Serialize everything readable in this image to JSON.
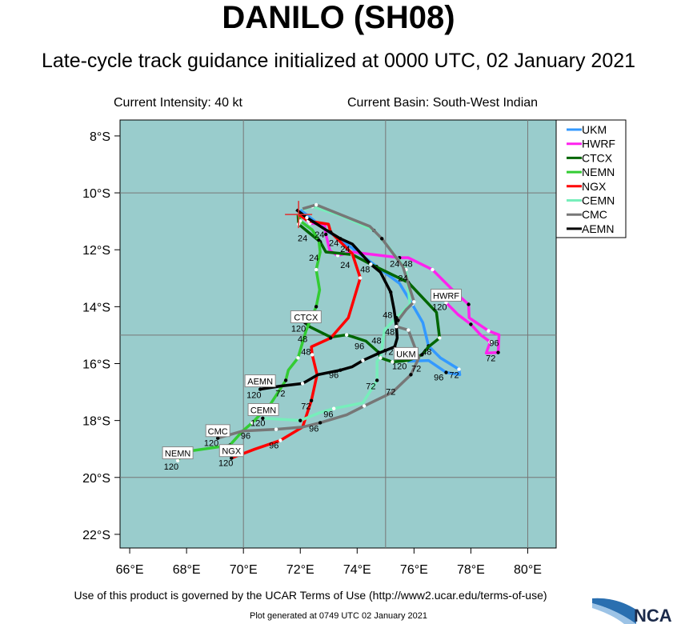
{
  "header": {
    "title": "DANILO (SH08)",
    "subtitle": "Late-cycle track guidance initialized at 0000 UTC, 02 January 2021",
    "current_intensity": "Current Intensity: 40 kt",
    "current_basin": "Current Basin: South-West Indian"
  },
  "footer": {
    "terms": "Use of this product is governed by the UCAR Terms of Use (http://www2.ucar.edu/terms-of-use)",
    "generated": "Plot generated at 0749 UTC   02 January 2021",
    "logo_text": "NCAR"
  },
  "map": {
    "background_color": "#99cccc",
    "lon_range": [
      65.66,
      81.0
    ],
    "lat_range": [
      -22.48,
      -7.44
    ],
    "grid_lons": [
      70,
      75,
      80
    ],
    "grid_lats": [
      -10,
      -15,
      -20
    ],
    "lon_ticks": [
      {
        "value": 66,
        "label": "66°E"
      },
      {
        "value": 68,
        "label": "68°E"
      },
      {
        "value": 70,
        "label": "70°E"
      },
      {
        "value": 72,
        "label": "72°E"
      },
      {
        "value": 74,
        "label": "74°E"
      },
      {
        "value": 76,
        "label": "76°E"
      },
      {
        "value": 78,
        "label": "78°E"
      },
      {
        "value": 80,
        "label": "80°E"
      }
    ],
    "lat_ticks": [
      {
        "value": -8,
        "label": "8°S"
      },
      {
        "value": -10,
        "label": "10°S"
      },
      {
        "value": -12,
        "label": "12°S"
      },
      {
        "value": -14,
        "label": "14°S"
      },
      {
        "value": -16,
        "label": "16°S"
      },
      {
        "value": -18,
        "label": "18°S"
      },
      {
        "value": -20,
        "label": "20°S"
      },
      {
        "value": -22,
        "label": "22°S"
      }
    ],
    "current_position": {
      "lon": 71.94,
      "lat": -10.76,
      "marker": "red-cross"
    }
  },
  "legend": {
    "placement": "right",
    "entries": [
      {
        "name": "UKM",
        "color": "#3399ff"
      },
      {
        "name": "HWRF",
        "color": "#ff22ee"
      },
      {
        "name": "CTCX",
        "color": "#006600"
      },
      {
        "name": "NEMN",
        "color": "#33cc33"
      },
      {
        "name": "NGX",
        "color": "#ff0000"
      },
      {
        "name": "CEMN",
        "color": "#77eebb"
      },
      {
        "name": "CMC",
        "color": "#777777"
      },
      {
        "name": "AEMN",
        "color": "#000000"
      }
    ]
  },
  "chart_data": {
    "type": "line",
    "xlabel": "",
    "ylabel": "",
    "xlim": [
      65.66,
      81.0
    ],
    "ylim": [
      -22.48,
      -7.44
    ],
    "grid": true,
    "series": [
      {
        "name": "UKM",
        "color": "#3399ff",
        "end_label": {
          "lon": 75.72,
          "lat": -15.66
        },
        "points": [
          [
            72.0,
            -10.6
          ],
          [
            72.9,
            -11.3
          ],
          [
            73.83,
            -11.94
          ],
          [
            74.68,
            -12.59
          ],
          [
            75.49,
            -13.18
          ],
          [
            75.94,
            -13.92
          ],
          [
            76.31,
            -14.56
          ],
          [
            76.51,
            -15.38
          ],
          [
            76.93,
            -15.8
          ],
          [
            77.58,
            -16.2
          ],
          [
            77.61,
            -16.39
          ],
          [
            77.13,
            -16.31
          ],
          [
            76.51,
            -15.89
          ],
          [
            75.72,
            -15.92
          ]
        ]
      },
      {
        "name": "HWRF",
        "color": "#ff22ee",
        "end_label": {
          "lon": 77.13,
          "lat": -13.61
        },
        "points": [
          [
            72.0,
            -10.76
          ],
          [
            72.34,
            -11.07
          ],
          [
            72.85,
            -11.1
          ],
          [
            72.9,
            -11.46
          ],
          [
            73.04,
            -12.03
          ],
          [
            73.32,
            -12.2
          ],
          [
            73.83,
            -12.08
          ],
          [
            75.49,
            -12.28
          ],
          [
            75.8,
            -12.28
          ],
          [
            76.65,
            -12.7
          ],
          [
            77.44,
            -13.49
          ],
          [
            77.92,
            -13.92
          ],
          [
            77.94,
            -14.39
          ],
          [
            78.62,
            -14.85
          ],
          [
            78.99,
            -14.99
          ],
          [
            78.96,
            -15.61
          ],
          [
            78.54,
            -15.63
          ],
          [
            78.68,
            -15.24
          ],
          [
            78.34,
            -14.99
          ],
          [
            78.0,
            -14.62
          ],
          [
            77.55,
            -14.28
          ],
          [
            77.13,
            -13.86
          ]
        ]
      },
      {
        "name": "CTCX",
        "color": "#006600",
        "end_label": {
          "lon": 72.2,
          "lat": -14.37
        },
        "points": [
          [
            71.92,
            -10.76
          ],
          [
            71.94,
            -11.1
          ],
          [
            72.28,
            -11.38
          ],
          [
            72.7,
            -11.72
          ],
          [
            72.9,
            -12.08
          ],
          [
            73.83,
            -12.17
          ],
          [
            74.48,
            -12.51
          ],
          [
            75.8,
            -13.15
          ],
          [
            76.79,
            -14.2
          ],
          [
            76.9,
            -15.1
          ],
          [
            76.51,
            -15.41
          ],
          [
            76.28,
            -15.69
          ],
          [
            75.8,
            -15.89
          ],
          [
            75.24,
            -15.94
          ],
          [
            74.82,
            -15.8
          ],
          [
            74.76,
            -15.61
          ],
          [
            74.31,
            -15.21
          ],
          [
            73.63,
            -14.99
          ],
          [
            73.07,
            -15.07
          ],
          [
            72.28,
            -14.68
          ],
          [
            72.17,
            -14.56
          ]
        ]
      },
      {
        "name": "NEMN",
        "color": "#33cc33",
        "end_label": {
          "lon": 67.69,
          "lat": -19.15
        },
        "points": [
          [
            71.94,
            -10.76
          ],
          [
            72.0,
            -10.99
          ],
          [
            72.42,
            -11.3
          ],
          [
            72.65,
            -11.66
          ],
          [
            72.7,
            -12.08
          ],
          [
            72.56,
            -12.7
          ],
          [
            72.68,
            -13.41
          ],
          [
            72.56,
            -14.0
          ],
          [
            72.2,
            -14.85
          ],
          [
            71.92,
            -15.8
          ],
          [
            71.58,
            -16.23
          ],
          [
            71.49,
            -16.59
          ],
          [
            70.96,
            -17.41
          ],
          [
            70.31,
            -18.08
          ],
          [
            69.97,
            -18.37
          ],
          [
            69.52,
            -18.87
          ],
          [
            67.92,
            -19.1
          ],
          [
            67.69,
            -19.41
          ]
        ]
      },
      {
        "name": "NGX",
        "color": "#ff0000",
        "end_label": {
          "lon": 69.58,
          "lat": -19.07
        },
        "points": [
          [
            71.94,
            -10.76
          ],
          [
            72.28,
            -10.99
          ],
          [
            72.99,
            -11.1
          ],
          [
            73.07,
            -11.38
          ],
          [
            73.83,
            -12.14
          ],
          [
            74.11,
            -12.99
          ],
          [
            73.69,
            -14.39
          ],
          [
            73.07,
            -15.1
          ],
          [
            72.39,
            -15.41
          ],
          [
            72.42,
            -15.69
          ],
          [
            72.59,
            -16.39
          ],
          [
            72.39,
            -17.3
          ],
          [
            72.08,
            -18.23
          ],
          [
            71.3,
            -18.7
          ],
          [
            70.39,
            -19.01
          ],
          [
            69.58,
            -19.32
          ]
        ]
      },
      {
        "name": "CEMN",
        "color": "#77eebb",
        "end_label": {
          "lon": 70.7,
          "lat": -17.63
        },
        "points": [
          [
            72.08,
            -10.59
          ],
          [
            72.42,
            -10.48
          ],
          [
            73.41,
            -10.79
          ],
          [
            74.59,
            -11.32
          ],
          [
            75.1,
            -11.89
          ],
          [
            75.72,
            -12.7
          ],
          [
            75.86,
            -13.92
          ],
          [
            75.38,
            -14.39
          ],
          [
            74.96,
            -14.82
          ],
          [
            74.82,
            -15.8
          ],
          [
            74.7,
            -15.92
          ],
          [
            74.7,
            -16.59
          ],
          [
            74.2,
            -17.38
          ],
          [
            73.18,
            -17.58
          ],
          [
            72.7,
            -17.72
          ],
          [
            72.0,
            -18.0
          ],
          [
            70.68,
            -17.92
          ]
        ]
      },
      {
        "name": "CMC",
        "color": "#777777",
        "end_label": {
          "lon": 69.1,
          "lat": -18.37
        },
        "points": [
          [
            72.08,
            -10.56
          ],
          [
            72.56,
            -10.42
          ],
          [
            74.45,
            -11.18
          ],
          [
            74.87,
            -11.61
          ],
          [
            75.61,
            -12.59
          ],
          [
            76.0,
            -13.83
          ],
          [
            75.72,
            -14.11
          ],
          [
            75.44,
            -14.48
          ],
          [
            75.38,
            -14.7
          ],
          [
            75.8,
            -14.82
          ],
          [
            76.17,
            -15.8
          ],
          [
            75.89,
            -16.39
          ],
          [
            75.24,
            -17.01
          ],
          [
            74.25,
            -17.49
          ],
          [
            73.63,
            -17.8
          ],
          [
            72.7,
            -18.08
          ],
          [
            72.08,
            -18.23
          ],
          [
            71.15,
            -18.31
          ],
          [
            69.97,
            -18.37
          ],
          [
            69.1,
            -18.62
          ]
        ]
      },
      {
        "name": "AEMN",
        "color": "#000000",
        "end_label": {
          "lon": 70.59,
          "lat": -16.62
        },
        "points": [
          [
            71.86,
            -10.59
          ],
          [
            72.23,
            -10.87
          ],
          [
            72.9,
            -11.3
          ],
          [
            73.41,
            -11.61
          ],
          [
            73.83,
            -11.8
          ],
          [
            74.48,
            -12.51
          ],
          [
            74.82,
            -12.79
          ],
          [
            75.18,
            -13.49
          ],
          [
            75.3,
            -14.11
          ],
          [
            75.38,
            -14.7
          ],
          [
            75.41,
            -15.1
          ],
          [
            75.32,
            -15.41
          ],
          [
            74.82,
            -15.61
          ],
          [
            74.2,
            -15.89
          ],
          [
            73.83,
            -16.11
          ],
          [
            73.41,
            -16.23
          ],
          [
            72.62,
            -16.39
          ],
          [
            72.08,
            -16.7
          ],
          [
            71.3,
            -16.79
          ],
          [
            70.59,
            -16.9
          ]
        ]
      }
    ],
    "hour_labels": [
      {
        "text": "24",
        "lon": 72.08,
        "lat": -11.58
      },
      {
        "text": "24",
        "lon": 72.68,
        "lat": -11.46
      },
      {
        "text": "24",
        "lon": 73.18,
        "lat": -11.75
      },
      {
        "text": "24",
        "lon": 73.58,
        "lat": -11.97
      },
      {
        "text": "24",
        "lon": 73.58,
        "lat": -12.28
      },
      {
        "text": "24",
        "lon": 72.48,
        "lat": -12.28
      },
      {
        "text": "24",
        "lon": 75.32,
        "lat": -12.48
      },
      {
        "text": "48",
        "lon": 75.61,
        "lat": -12.48
      },
      {
        "text": "48",
        "lon": 74.28,
        "lat": -12.68
      },
      {
        "text": "24",
        "lon": 75.61,
        "lat": -12.99
      },
      {
        "text": "120",
        "lon": 76.9,
        "lat": -14.0
      },
      {
        "text": "48",
        "lon": 75.07,
        "lat": -14.28
      },
      {
        "text": "48",
        "lon": 75.15,
        "lat": -14.87
      },
      {
        "text": "120",
        "lon": 71.94,
        "lat": -14.76
      },
      {
        "text": "48",
        "lon": 72.08,
        "lat": -14.87
      },
      {
        "text": "48",
        "lon": 74.68,
        "lat": -15.18
      },
      {
        "text": "96",
        "lon": 74.08,
        "lat": -15.38
      },
      {
        "text": "72",
        "lon": 75.1,
        "lat": -15.58
      },
      {
        "text": "72",
        "lon": 76.08,
        "lat": -15.92
      },
      {
        "text": "48",
        "lon": 76.28,
        "lat": -15.58
      },
      {
        "text": "120",
        "lon": 75.49,
        "lat": -16.08
      },
      {
        "text": "96",
        "lon": 76.87,
        "lat": -16.48
      },
      {
        "text": "72",
        "lon": 77.41,
        "lat": -16.39
      },
      {
        "text": "96",
        "lon": 78.82,
        "lat": -15.27
      },
      {
        "text": "72",
        "lon": 78.7,
        "lat": -15.8
      },
      {
        "text": "48",
        "lon": 72.2,
        "lat": -15.58
      },
      {
        "text": "96",
        "lon": 73.18,
        "lat": -16.39
      },
      {
        "text": "72",
        "lon": 71.3,
        "lat": -16.79
      },
      {
        "text": "72",
        "lon": 72.2,
        "lat": -17.49
      },
      {
        "text": "120",
        "lon": 70.51,
        "lat": -18.08
      },
      {
        "text": "96",
        "lon": 72.99,
        "lat": -17.77
      },
      {
        "text": "96",
        "lon": 72.48,
        "lat": -18.28
      },
      {
        "text": "96",
        "lon": 70.08,
        "lat": -18.28
      },
      {
        "text": "120",
        "lon": 68.87,
        "lat": -18.79
      },
      {
        "text": "96",
        "lon": 71.07,
        "lat": -18.87
      },
      {
        "text": "120",
        "lon": 67.46,
        "lat": -19.61
      },
      {
        "text": "120",
        "lon": 69.38,
        "lat": -19.49
      },
      {
        "text": "120",
        "lon": 70.37,
        "lat": -17.1
      },
      {
        "text": "72",
        "lon": 74.48,
        "lat": -16.79
      },
      {
        "text": "72",
        "lon": 75.18,
        "lat": -16.99
      }
    ]
  }
}
